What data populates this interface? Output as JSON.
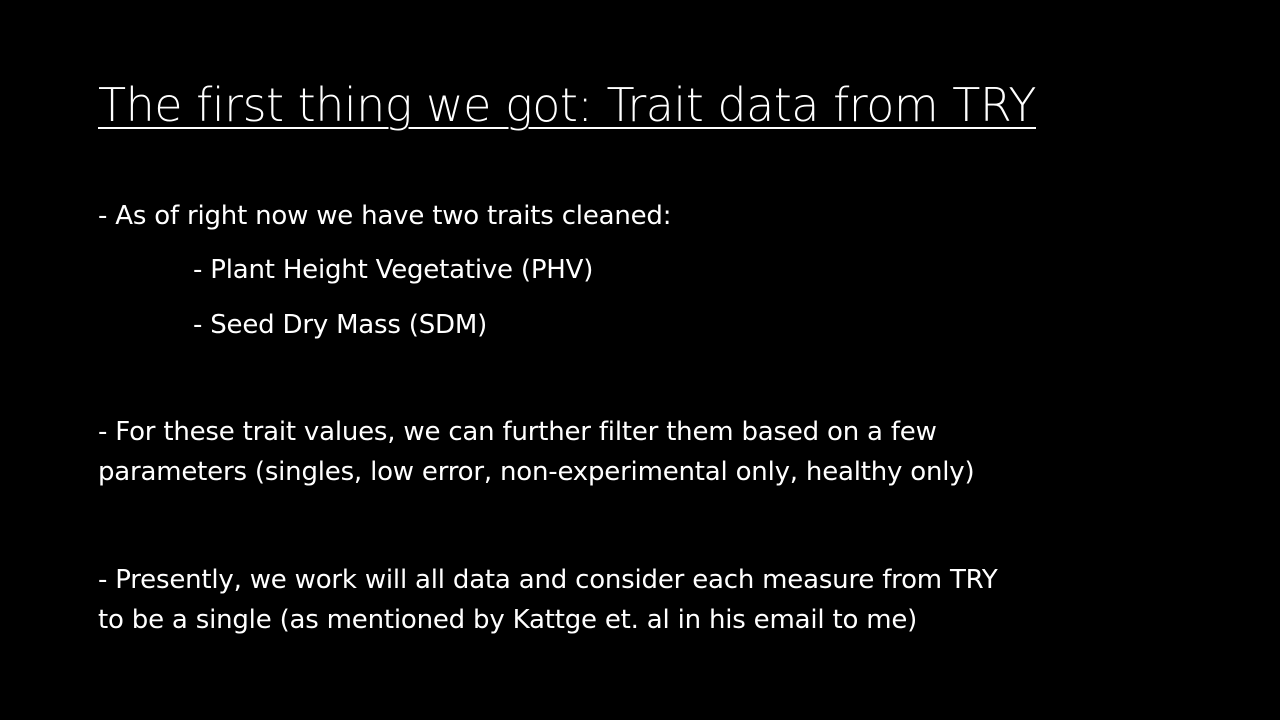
{
  "slide": {
    "title": "The first thing we got: Trait data from TRY",
    "bullets": {
      "b1": "- As of right now we have two traits cleaned:",
      "b1_sub1": "- Plant Height Vegetative (PHV)",
      "b1_sub2": "- Seed Dry Mass (SDM)",
      "b2_line1": "- For these trait values, we can further filter them based on a few",
      "b2_line2": "parameters (singles, low error, non-experimental only, healthy only)",
      "b3_line1": "- Presently, we work will all data and consider each measure from TRY",
      "b3_line2": "to be a single (as mentioned by Kattge et. al in his email to me)"
    },
    "colors": {
      "background": "#000000",
      "text": "#ffffff"
    }
  }
}
